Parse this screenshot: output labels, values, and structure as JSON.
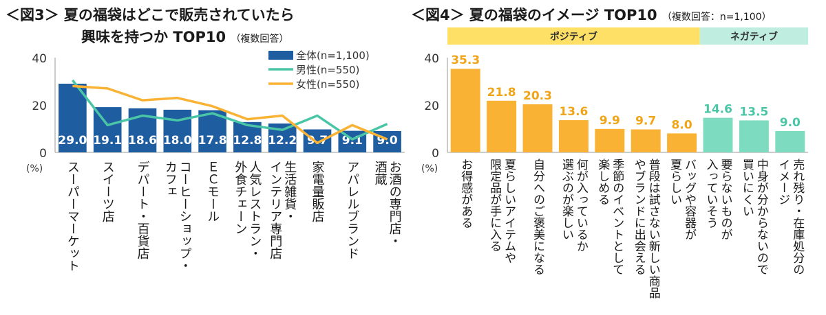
{
  "chart_data": [
    {
      "type": "bar",
      "title_line1": "＜図3＞ 夏の福袋はどこで販売されていたら",
      "title_line2": "興味を持つか TOP10",
      "subtitle": "（複数回答）",
      "ylabel": "(%)",
      "ylim": [
        0,
        40
      ],
      "yticks": [
        0,
        20,
        40
      ],
      "grid": false,
      "legend_position": "top-right",
      "categories": [
        "スーパーマーケット",
        "スイーツ店",
        "デパート・百貨店",
        "コーヒーショップ・カフェ",
        "ECモール",
        "人気レストラン・外食チェーン",
        "生活雑貨・インテリア専門店",
        "家電量販店",
        "アパレルブランド",
        "お酒の専門店・酒蔵"
      ],
      "category_lines": [
        [
          "スーパーマーケット"
        ],
        [
          "スイーツ店"
        ],
        [
          "デパート・百貨店"
        ],
        [
          "コーヒーショップ・",
          "カフェ"
        ],
        [
          "ＥＣモール"
        ],
        [
          "人気レストラン・",
          "外食チェーン"
        ],
        [
          "生活雑貨・",
          "インテリア専門店"
        ],
        [
          "家電量販店"
        ],
        [
          "アパレルブランド"
        ],
        [
          "お酒の専門店・",
          "酒蔵"
        ]
      ],
      "series": [
        {
          "name": "全体(n=1,100)",
          "kind": "bar",
          "color": "#1f5da1",
          "values": [
            29.0,
            19.1,
            18.6,
            18.0,
            17.8,
            12.8,
            12.2,
            9.7,
            9.1,
            9.0
          ],
          "labels": [
            "29.0",
            "19.1",
            "18.6",
            "18.0",
            "17.8",
            "12.8",
            "12.2",
            "9.7",
            "9.1",
            "9.0"
          ]
        },
        {
          "name": "男性(n=550)",
          "kind": "line",
          "color": "#4ac6a6",
          "values": [
            30.5,
            11.5,
            15.5,
            13.5,
            16.5,
            11.5,
            9.5,
            15.5,
            5.5,
            12.0
          ]
        },
        {
          "name": "女性(n=550)",
          "kind": "line",
          "color": "#f9b233",
          "values": [
            28.0,
            27.0,
            22.0,
            23.0,
            19.5,
            14.0,
            15.5,
            4.0,
            11.5,
            5.5
          ]
        }
      ]
    },
    {
      "type": "bar",
      "title": "＜図4＞ 夏の福袋のイメージ TOP10",
      "subtitle": "（複数回答：n=1,100）",
      "ylabel": "(%)",
      "ylim": [
        0,
        40
      ],
      "yticks": [
        0,
        20,
        40
      ],
      "grid": false,
      "groups": [
        {
          "label": "ポジティブ",
          "color": "#ffe066",
          "count": 7
        },
        {
          "label": "ネガティブ",
          "color": "#bfeee0",
          "count": 3
        }
      ],
      "categories": [
        "お得感がある",
        "夏らしいアイテムや限定品が手に入る",
        "自分へのご褒美になる",
        "何が入っているか選ぶのが楽しい",
        "季節のイベントとして楽しめる",
        "普段は試さない新しい商品やブランドに出会える",
        "バッグや容器が夏らしい",
        "要らないものが入っていそう",
        "中身が分からないので買いにくい",
        "売れ残り・在庫処分のイメージ"
      ],
      "category_lines": [
        [
          "お得感がある"
        ],
        [
          "夏らしいアイテムや",
          "限定品が手に入る"
        ],
        [
          "自分へのご褒美になる"
        ],
        [
          "何が入っているか",
          "選ぶのが楽しい"
        ],
        [
          "季節のイベントとして",
          "楽しめる"
        ],
        [
          "普段は試さない新しい商品",
          "やブランドに出会える"
        ],
        [
          "バッグや容器が",
          "夏らしい"
        ],
        [
          "要らないものが",
          "入っていそう"
        ],
        [
          "中身が分からないので",
          "買いにくい"
        ],
        [
          "売れ残り・在庫処分の",
          "イメージ"
        ]
      ],
      "values": [
        35.3,
        21.8,
        20.3,
        13.6,
        9.9,
        9.7,
        8.0,
        14.6,
        13.5,
        9.0
      ],
      "labels": [
        "35.3",
        "21.8",
        "20.3",
        "13.6",
        "9.9",
        "9.7",
        "8.0",
        "14.6",
        "13.5",
        "9.0"
      ],
      "colors": [
        "#f9b233",
        "#f9b233",
        "#f9b233",
        "#f9b233",
        "#f9b233",
        "#f9b233",
        "#f9b233",
        "#7ddcc0",
        "#7ddcc0",
        "#7ddcc0"
      ],
      "label_colors": [
        "#f0a418",
        "#f0a418",
        "#f0a418",
        "#f0a418",
        "#f0a418",
        "#f0a418",
        "#f0a418",
        "#4ac6a6",
        "#4ac6a6",
        "#4ac6a6"
      ]
    }
  ]
}
